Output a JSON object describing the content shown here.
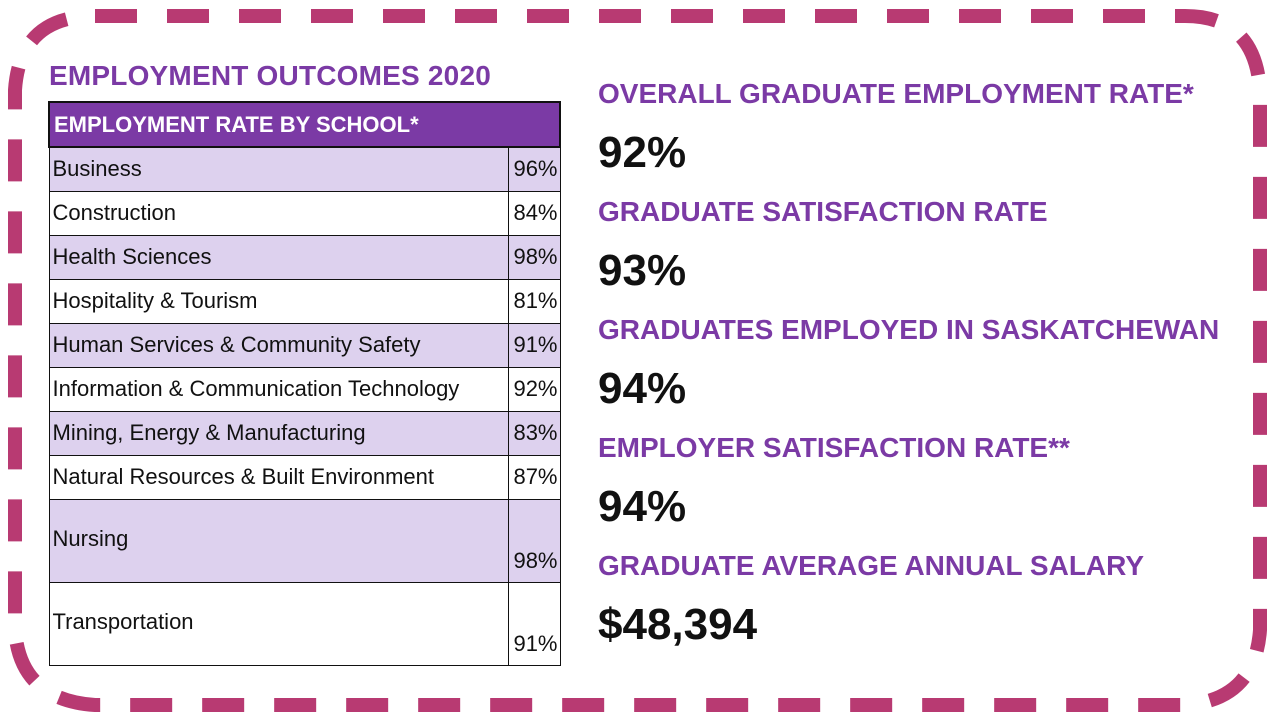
{
  "title": "EMPLOYMENT OUTCOMES 2020",
  "table": {
    "header": "EMPLOYMENT RATE BY SCHOOL*",
    "rows": [
      {
        "school": "Business",
        "rate": "96%"
      },
      {
        "school": "Construction",
        "rate": "84%"
      },
      {
        "school": "Health Sciences",
        "rate": "98%"
      },
      {
        "school": "Hospitality & Tourism",
        "rate": "81%"
      },
      {
        "school": "Human Services & Community Safety",
        "rate": "91%"
      },
      {
        "school": "Information & Communication Technology",
        "rate": "92%"
      },
      {
        "school": "Mining, Energy & Manufacturing",
        "rate": "83%"
      },
      {
        "school": "Natural Resources & Built Environment",
        "rate": "87%"
      },
      {
        "school": "Nursing",
        "rate": "98%"
      },
      {
        "school": "Transportation",
        "rate": "91%"
      }
    ]
  },
  "stats": [
    {
      "label": "OVERALL GRADUATE EMPLOYMENT RATE*",
      "value": "92%"
    },
    {
      "label": "GRADUATE SATISFACTION RATE",
      "value": "93%"
    },
    {
      "label": "GRADUATES EMPLOYED IN SASKATCHEWAN",
      "value": "94%"
    },
    {
      "label": "EMPLOYER SATISFACTION RATE**",
      "value": "94%"
    },
    {
      "label": "GRADUATE AVERAGE ANNUAL SALARY",
      "value": "$48,394"
    }
  ],
  "colors": {
    "accent_purple": "#7b3aa5",
    "row_shade": "#ddd1ee",
    "border_dash": "#b83a72"
  }
}
